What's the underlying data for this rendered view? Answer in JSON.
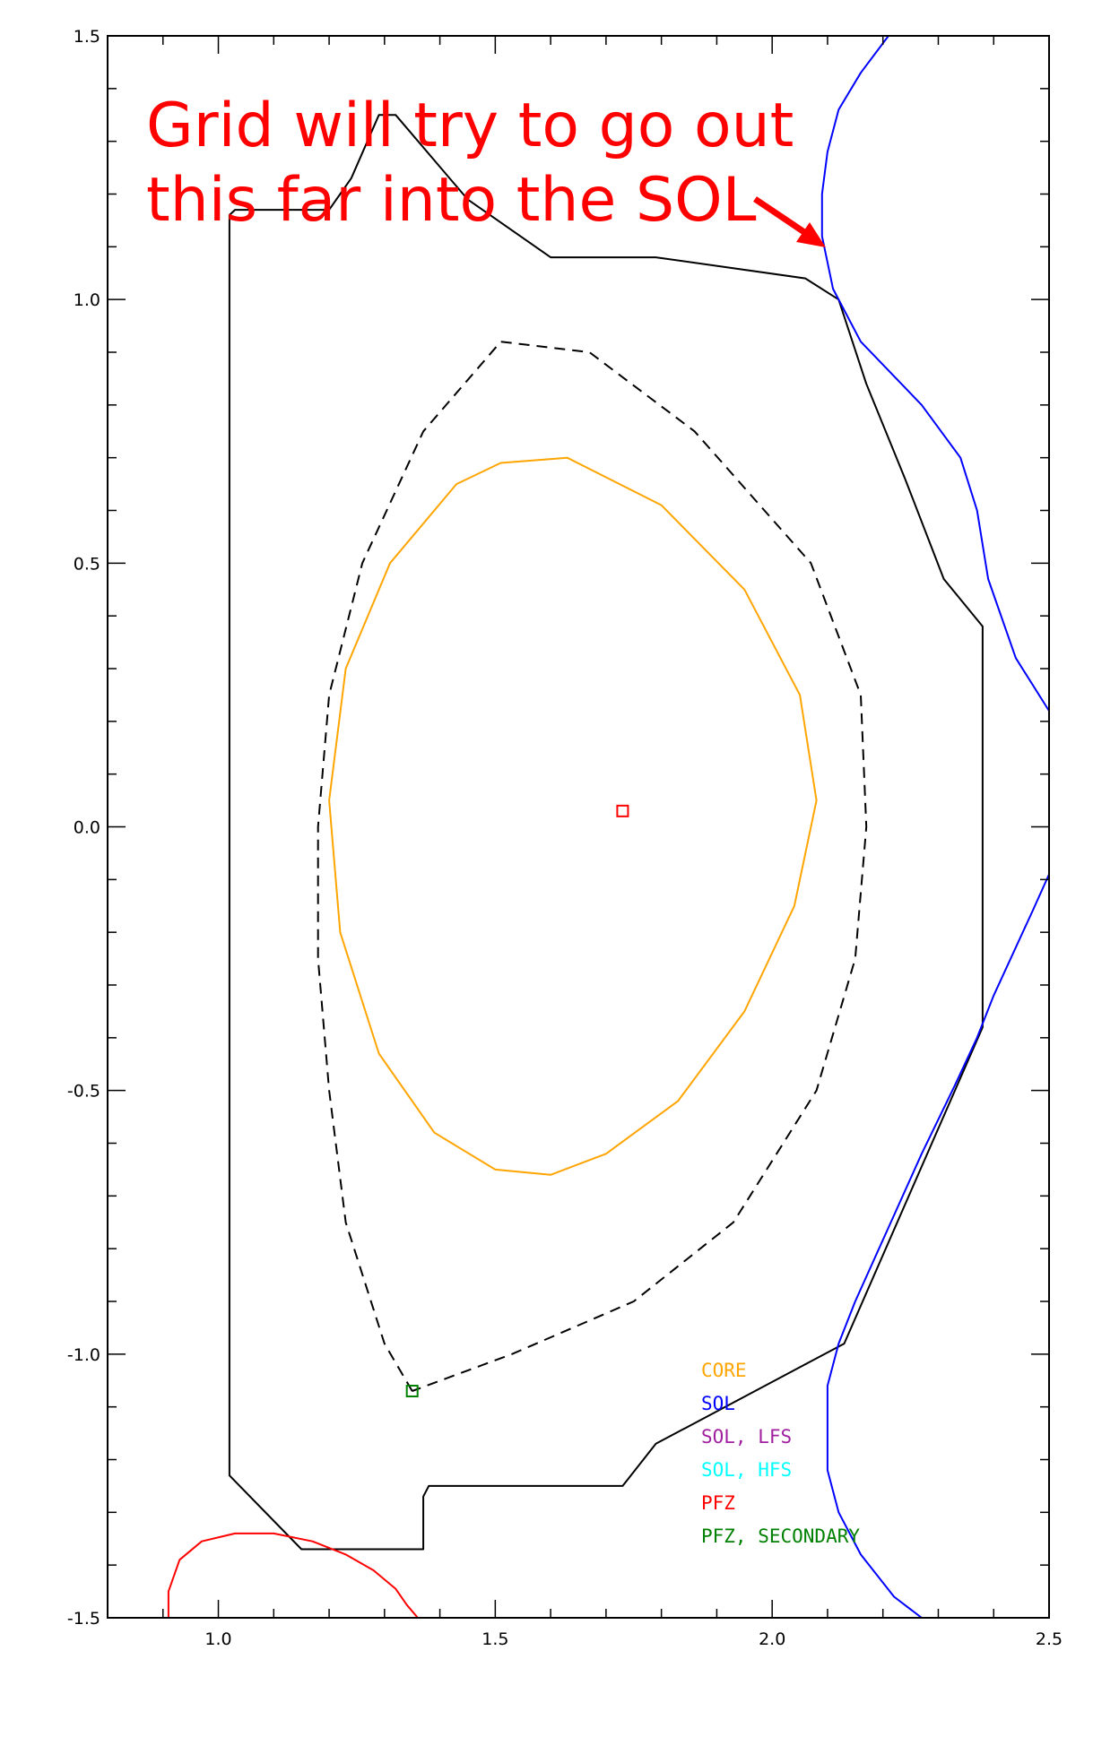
{
  "chart_data": {
    "type": "line",
    "title": "",
    "xlabel": "",
    "ylabel": "",
    "xlim": [
      0.8,
      2.5
    ],
    "ylim": [
      -1.5,
      1.5
    ],
    "x_ticks": [
      "1.0",
      "1.5",
      "2.0",
      "2.5"
    ],
    "y_ticks": [
      "-1.5",
      "-1.0",
      "-0.5",
      "0.0",
      "0.5",
      "1.0",
      "1.5"
    ],
    "grid": false,
    "legend_position": "bottom-right",
    "legend": [
      {
        "label": "CORE",
        "color": "#ffa500"
      },
      {
        "label": "SOL",
        "color": "#0000ff"
      },
      {
        "label": "SOL, LFS",
        "color": "#a020a0"
      },
      {
        "label": "SOL, HFS",
        "color": "#00ffff"
      },
      {
        "label": "PFZ",
        "color": "#ff0000"
      },
      {
        "label": "PFZ, SECONDARY",
        "color": "#008000"
      }
    ],
    "annotation": {
      "lines": [
        "Grid will try to go out",
        "this far into the SOL"
      ],
      "color": "#ff0000"
    },
    "series": [
      {
        "id": "wall",
        "style": "solid",
        "color": "#000000",
        "closed": true,
        "points": [
          [
            1.02,
            1.16
          ],
          [
            1.03,
            1.17
          ],
          [
            1.2,
            1.17
          ],
          [
            1.24,
            1.23
          ],
          [
            1.29,
            1.35
          ],
          [
            1.32,
            1.35
          ],
          [
            1.45,
            1.19
          ],
          [
            1.6,
            1.08
          ],
          [
            1.79,
            1.08
          ],
          [
            2.06,
            1.04
          ],
          [
            2.12,
            1.0
          ],
          [
            2.17,
            0.84
          ],
          [
            2.24,
            0.66
          ],
          [
            2.31,
            0.47
          ],
          [
            2.38,
            0.38
          ],
          [
            2.38,
            -0.38
          ],
          [
            2.13,
            -0.98
          ],
          [
            1.79,
            -1.17
          ],
          [
            1.73,
            -1.25
          ],
          [
            1.38,
            -1.25
          ],
          [
            1.37,
            -1.27
          ],
          [
            1.37,
            -1.37
          ],
          [
            1.15,
            -1.37
          ],
          [
            1.02,
            -1.23
          ]
        ]
      },
      {
        "id": "separatrix",
        "style": "dashed",
        "color": "#000000",
        "closed": false,
        "points": [
          [
            1.35,
            -1.07
          ],
          [
            1.3,
            -0.98
          ],
          [
            1.23,
            -0.75
          ],
          [
            1.2,
            -0.5
          ],
          [
            1.18,
            -0.25
          ],
          [
            1.18,
            0.0
          ],
          [
            1.2,
            0.25
          ],
          [
            1.26,
            0.5
          ],
          [
            1.37,
            0.75
          ],
          [
            1.51,
            0.92
          ],
          [
            1.67,
            0.9
          ],
          [
            1.86,
            0.75
          ],
          [
            2.07,
            0.5
          ],
          [
            2.16,
            0.25
          ],
          [
            2.17,
            0.0
          ],
          [
            2.15,
            -0.25
          ],
          [
            2.08,
            -0.5
          ],
          [
            1.93,
            -0.75
          ],
          [
            1.75,
            -0.9
          ],
          [
            1.53,
            -1.0
          ],
          [
            1.35,
            -1.07
          ]
        ]
      },
      {
        "id": "core",
        "style": "solid",
        "color": "#ffa500",
        "closed": true,
        "points": [
          [
            1.43,
            0.65
          ],
          [
            1.51,
            0.69
          ],
          [
            1.63,
            0.7
          ],
          [
            1.8,
            0.61
          ],
          [
            1.95,
            0.45
          ],
          [
            2.05,
            0.25
          ],
          [
            2.08,
            0.05
          ],
          [
            2.04,
            -0.15
          ],
          [
            1.95,
            -0.35
          ],
          [
            1.83,
            -0.52
          ],
          [
            1.7,
            -0.62
          ],
          [
            1.6,
            -0.66
          ],
          [
            1.5,
            -0.65
          ],
          [
            1.39,
            -0.58
          ],
          [
            1.29,
            -0.43
          ],
          [
            1.22,
            -0.2
          ],
          [
            1.2,
            0.05
          ],
          [
            1.23,
            0.3
          ],
          [
            1.31,
            0.5
          ]
        ]
      },
      {
        "id": "sol_upper",
        "style": "solid",
        "color": "#0000ff",
        "closed": false,
        "points": [
          [
            2.5,
            0.22
          ],
          [
            2.44,
            0.32
          ],
          [
            2.39,
            0.47
          ],
          [
            2.37,
            0.6
          ],
          [
            2.34,
            0.7
          ],
          [
            2.27,
            0.8
          ],
          [
            2.16,
            0.92
          ],
          [
            2.11,
            1.02
          ],
          [
            2.09,
            1.12
          ],
          [
            2.09,
            1.2
          ],
          [
            2.1,
            1.28
          ],
          [
            2.12,
            1.36
          ],
          [
            2.16,
            1.43
          ],
          [
            2.21,
            1.5
          ]
        ]
      },
      {
        "id": "sol_lower",
        "style": "solid",
        "color": "#0000ff",
        "closed": false,
        "points": [
          [
            2.5,
            -0.09
          ],
          [
            2.47,
            -0.16
          ],
          [
            2.4,
            -0.32
          ],
          [
            2.37,
            -0.4
          ],
          [
            2.33,
            -0.49
          ],
          [
            2.27,
            -0.62
          ],
          [
            2.21,
            -0.76
          ],
          [
            2.15,
            -0.9
          ],
          [
            2.12,
            -0.98
          ],
          [
            2.1,
            -1.06
          ],
          [
            2.1,
            -1.22
          ],
          [
            2.12,
            -1.3
          ],
          [
            2.16,
            -1.38
          ],
          [
            2.22,
            -1.46
          ],
          [
            2.27,
            -1.5
          ]
        ]
      },
      {
        "id": "pfz",
        "style": "solid",
        "color": "#ff0000",
        "closed": false,
        "points": [
          [
            0.91,
            -1.5
          ],
          [
            0.91,
            -1.45
          ],
          [
            0.93,
            -1.39
          ],
          [
            0.97,
            -1.355
          ],
          [
            1.03,
            -1.34
          ],
          [
            1.1,
            -1.34
          ],
          [
            1.17,
            -1.355
          ],
          [
            1.23,
            -1.38
          ],
          [
            1.28,
            -1.41
          ],
          [
            1.32,
            -1.445
          ],
          [
            1.34,
            -1.475
          ],
          [
            1.36,
            -1.5
          ]
        ]
      }
    ],
    "markers": [
      {
        "id": "magnetic-axis",
        "x": 1.73,
        "y": 0.03,
        "color": "#ff0000",
        "shape": "square"
      },
      {
        "id": "x-point",
        "x": 1.35,
        "y": -1.07,
        "color": "#008000",
        "shape": "square"
      }
    ]
  }
}
